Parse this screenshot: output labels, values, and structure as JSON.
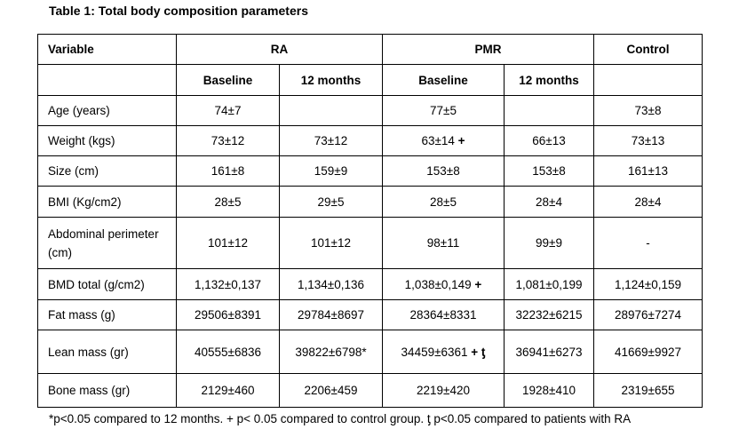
{
  "title": "Table 1: Total body composition parameters",
  "header": {
    "groups": [
      "Variable",
      "RA",
      "PMR",
      "Control"
    ],
    "subheaders": [
      null,
      "Baseline",
      "12 months",
      "Baseline",
      "12 months",
      null
    ]
  },
  "rows": [
    {
      "variable": "Age (years)",
      "values": [
        "74±7",
        null,
        "77±5",
        null,
        "73±8"
      ]
    },
    {
      "variable": "Weight (kgs)",
      "values": [
        "73±12",
        "73±12",
        {
          "text": "63±14",
          "mark": "+"
        },
        "66±13",
        "73±13"
      ]
    },
    {
      "variable": "Size (cm)",
      "values": [
        "161±8",
        "159±9",
        "153±8",
        "153±8",
        "161±13"
      ]
    },
    {
      "variable": "BMI (Kg/cm2)",
      "values": [
        "28±5",
        "29±5",
        "28±5",
        "28±4",
        "28±4"
      ]
    },
    {
      "variable": "Abdominal perimeter (cm)",
      "values": [
        "101±12",
        "101±12",
        "98±11",
        "99±9",
        "-"
      ]
    },
    {
      "variable": "BMD total (g/cm2)",
      "values": [
        "1,132±0,137",
        "1,134±0,136",
        {
          "text": "1,038±0,149",
          "mark": "+"
        },
        "1,081±0,199",
        "1,124±0,159"
      ]
    },
    {
      "variable": "Fat mass (g)",
      "values": [
        "29506±8391",
        "29784±8697",
        "28364±8331",
        "32232±6215",
        "28976±7274"
      ]
    },
    {
      "variable": "Lean mass (gr)",
      "values": [
        "40555±6836",
        "39822±6798*",
        {
          "text": "34459±6361",
          "mark": "+ ƫ"
        },
        "36941±6273",
        "41669±9927"
      ]
    },
    {
      "variable": "Bone mass (gr)",
      "values": [
        "2129±460",
        "2206±459",
        "2219±420",
        "1928±410",
        "2319±655"
      ]
    }
  ],
  "footnote": "*p<0.05 compared to 12 months.  + p< 0.05 compared to control group. ƫ p<0.05 compared to patients with RA"
}
